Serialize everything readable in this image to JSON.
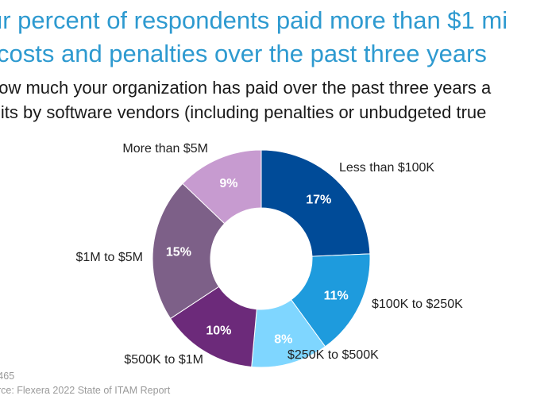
{
  "header": {
    "title_line1": "ur percent of respondents paid more than $1 mi",
    "title_line2": "costs and penalties over the past three years",
    "question_line1": "how much your organization has paid over the past three years a",
    "question_line2": "lits by software vendors (including penalties or unbudgeted true"
  },
  "footer": {
    "n_text": "=465",
    "source": "urce: Flexera 2022 State of ITAM Report"
  },
  "chart_data": {
    "type": "pie",
    "donut": true,
    "categories": [
      "Less than $100K",
      "$100K to $250K",
      "$250K to $500K",
      "$500K to $1M",
      "$1M to $5M",
      "More than $5M"
    ],
    "values": [
      17,
      11,
      8,
      10,
      15,
      9
    ],
    "value_labels": [
      "17%",
      "11%",
      "8%",
      "10%",
      "15%",
      "9%"
    ],
    "colors": [
      "#004B98",
      "#1E9BDD",
      "#7FD6FF",
      "#6C2A7A",
      "#7D6088",
      "#C79BD0"
    ],
    "start_position": "top, clockwise"
  }
}
